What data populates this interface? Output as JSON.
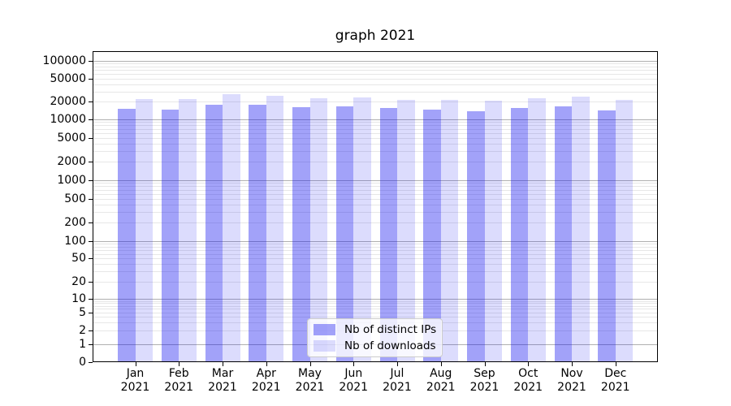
{
  "chart_data": {
    "type": "bar",
    "title": "graph 2021",
    "months": [
      "Jan",
      "Feb",
      "Mar",
      "Apr",
      "May",
      "Jun",
      "Jul",
      "Aug",
      "Sep",
      "Oct",
      "Nov",
      "Dec"
    ],
    "year": "2021",
    "series": [
      {
        "name": "Nb of distinct IPs",
        "color": "#0a0af0",
        "alpha": 0.38,
        "values": [
          15200,
          14800,
          17900,
          17600,
          16300,
          16900,
          15500,
          14700,
          13900,
          15700,
          16700,
          14200
        ]
      },
      {
        "name": "Nb of downloads",
        "color": "#0a0af0",
        "alpha": 0.14,
        "values": [
          22200,
          22400,
          27000,
          25500,
          23200,
          24000,
          21800,
          21400,
          20900,
          23000,
          24500,
          21400
        ]
      }
    ],
    "y_ticks": [
      0,
      1,
      2,
      5,
      10,
      20,
      50,
      100,
      200,
      500,
      1000,
      2000,
      5000,
      10000,
      20000,
      50000,
      100000
    ],
    "yscale": "symlog",
    "ylim": [
      0,
      160000
    ],
    "grid": true,
    "grid_major_color": "#b0b0b0",
    "grid_minor_color": "#e7e7e7",
    "legend_position": "lower center"
  }
}
